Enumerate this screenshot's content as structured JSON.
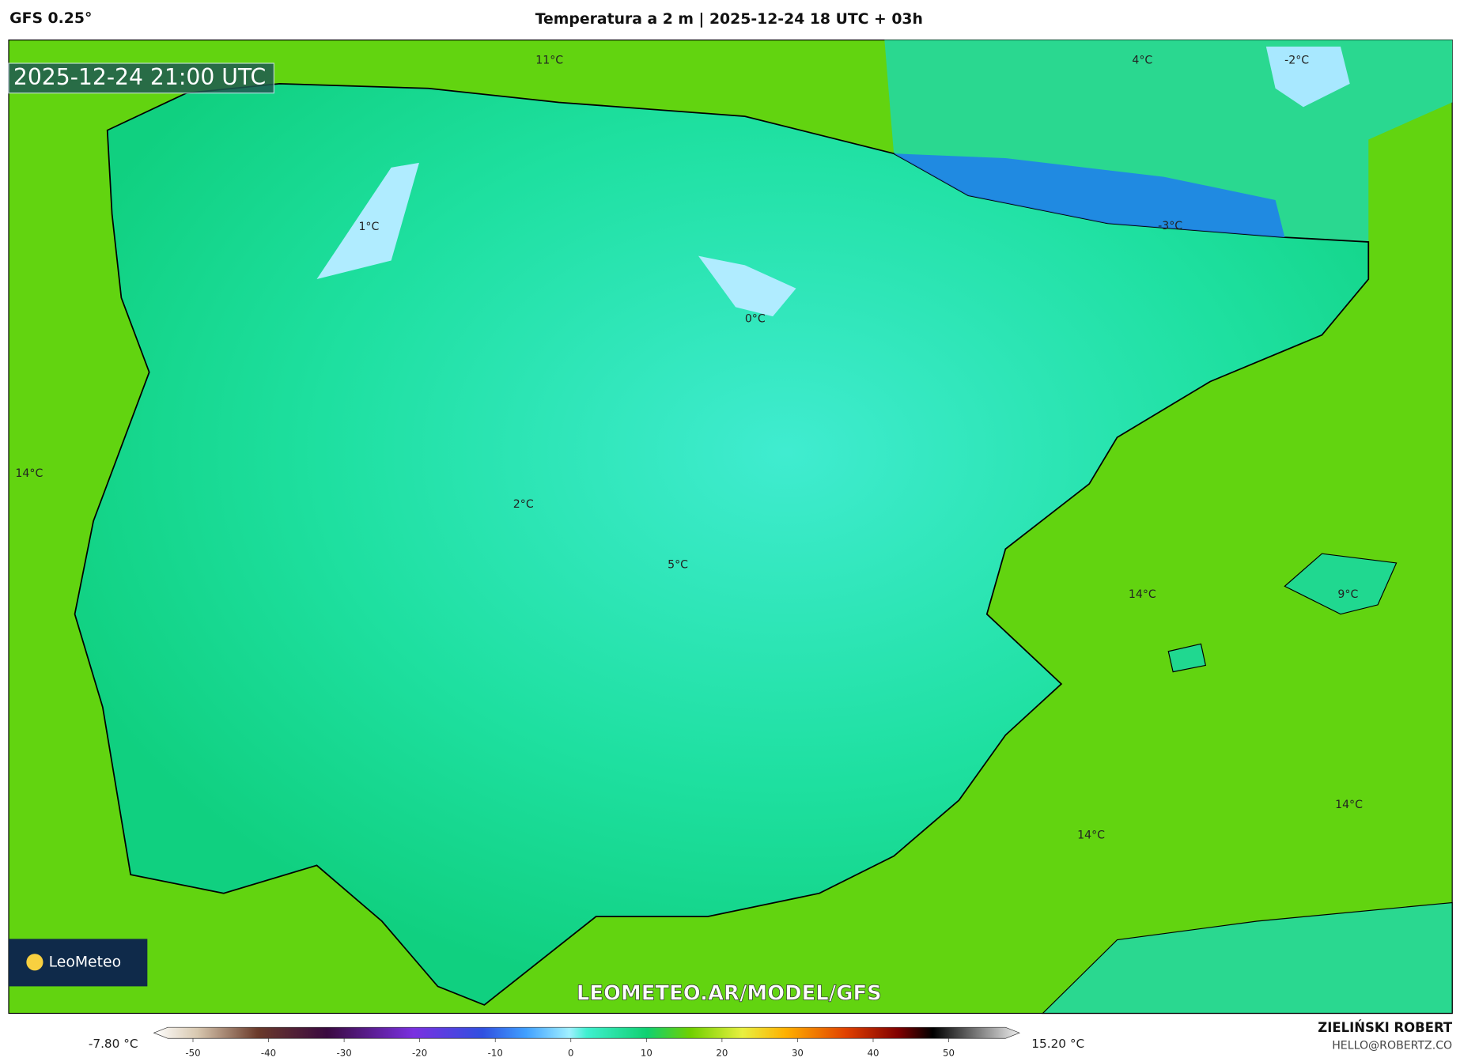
{
  "header": {
    "model": "GFS 0.25°",
    "title": "Temperatura a 2 m | 2025-12-24 18 UTC + 03h"
  },
  "map": {
    "valid_time": "2025-12-24 21:00 UTC",
    "labels": [
      "11°C",
      "4°C",
      "-2°C",
      "1°C",
      "-3°C",
      "0°C",
      "14°C",
      "2°C",
      "5°C",
      "14°C",
      "9°C",
      "14°C",
      "14°C"
    ],
    "logo": "LeoMeteo",
    "watermark": "LEOMETEO.AR/MODEL/GFS"
  },
  "colorbar": {
    "min_label": "-7.80 °C",
    "max_label": "15.20 °C",
    "ticks": [
      -50,
      -40,
      -30,
      -20,
      -10,
      0,
      10,
      20,
      30,
      40,
      50
    ]
  },
  "footer": {
    "author": "ZIELIŃSKI ROBERT",
    "email": "HELLO@ROBERTZ.CO"
  }
}
